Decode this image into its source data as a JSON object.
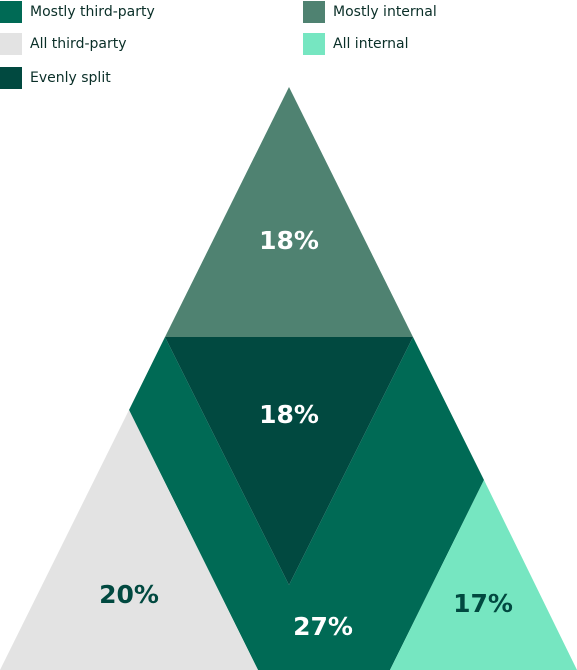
{
  "chart_data": {
    "type": "triangle",
    "categories": [
      "Mostly third-party",
      "Mostly internal",
      "All third-party",
      "All internal",
      "Evenly split"
    ],
    "values": [
      27,
      18,
      20,
      17,
      18
    ],
    "value_labels": [
      "27%",
      "18%",
      "20%",
      "17%",
      "18%"
    ],
    "colors": [
      "#006a55",
      "#4f8271",
      "#e3e3e3",
      "#76e6c1",
      "#014940"
    ]
  }
}
